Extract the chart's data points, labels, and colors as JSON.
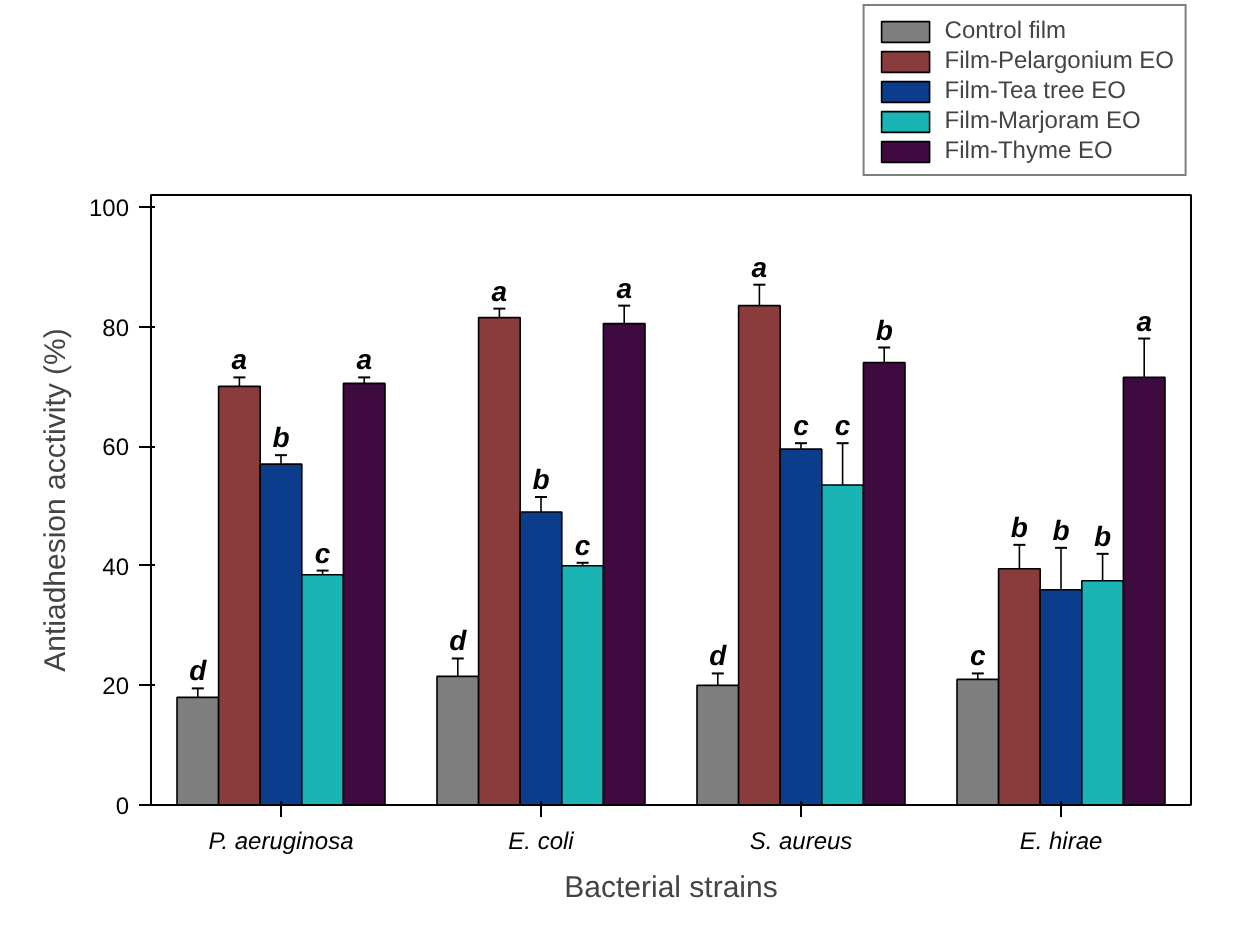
{
  "chart_data": {
    "type": "bar",
    "xlabel": "Bacterial strains",
    "ylabel": "Antiadhesion acctivity (%)",
    "categories": [
      "P. aeruginosa",
      "E. coli",
      "S. aureus",
      "E. hirae"
    ],
    "series": [
      {
        "name": "Control film",
        "color": "#7f7f7f",
        "values": [
          18,
          21.5,
          20,
          21
        ],
        "errors": [
          1.5,
          3,
          2,
          1
        ]
      },
      {
        "name": "Film-Pelargonium EO",
        "color": "#8a3c3c",
        "values": [
          70,
          81.5,
          83.5,
          39.5
        ],
        "errors": [
          1.5,
          1.5,
          3.5,
          4
        ]
      },
      {
        "name": "Film-Tea tree EO",
        "color": "#0c3c8c",
        "values": [
          57,
          49,
          59.5,
          36
        ],
        "errors": [
          1.5,
          2.5,
          1,
          7
        ]
      },
      {
        "name": "Film-Marjoram EO",
        "color": "#1ab4b4",
        "values": [
          38.5,
          40,
          53.5,
          37.5
        ],
        "errors": [
          0.7,
          0.5,
          7,
          4.5
        ]
      },
      {
        "name": "Film-Thyme EO",
        "color": "#3e0a40",
        "values": [
          70.5,
          80.5,
          74,
          71.5
        ],
        "errors": [
          1,
          3,
          2.5,
          6.5
        ]
      }
    ],
    "ylim": [
      0,
      102
    ],
    "yticks": [
      0,
      20,
      40,
      60,
      80,
      100
    ],
    "grid": false,
    "legend": "top right",
    "annotations": [
      "d",
      "a",
      "b",
      "c",
      "a",
      "d",
      "a",
      "b",
      "c",
      "a",
      "d",
      "a",
      "c",
      "c",
      "b",
      "c",
      "b",
      "b",
      "b",
      "a"
    ]
  }
}
